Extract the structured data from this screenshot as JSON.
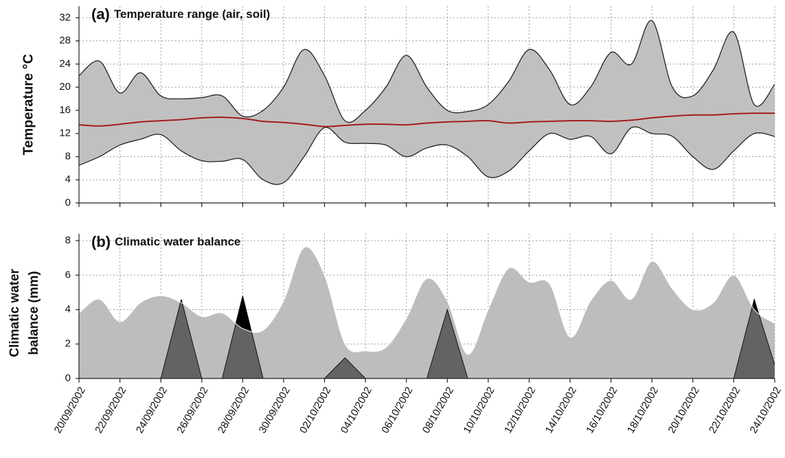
{
  "chart_data": [
    {
      "type": "range",
      "panel_label": "(a)",
      "title": "Temperature range (air, soil)",
      "ylabel": "Temperature °C",
      "x": [
        "20/09/2002",
        "21/09/2002",
        "22/09/2002",
        "23/09/2002",
        "24/09/2002",
        "25/09/2002",
        "26/09/2002",
        "27/09/2002",
        "28/09/2002",
        "29/09/2002",
        "30/09/2002",
        "01/10/2002",
        "02/10/2002",
        "03/10/2002",
        "04/10/2002",
        "05/10/2002",
        "06/10/2002",
        "07/10/2002",
        "08/10/2002",
        "09/10/2002",
        "10/10/2002",
        "11/10/2002",
        "12/10/2002",
        "13/10/2002",
        "14/10/2002",
        "15/10/2002",
        "16/10/2002",
        "17/10/2002",
        "18/10/2002",
        "19/10/2002",
        "20/10/2002",
        "21/10/2002",
        "22/10/2002",
        "23/10/2002",
        "24/10/2002"
      ],
      "series": [
        {
          "color": "#222222",
          "values": [
            22,
            24.5,
            19,
            22.5,
            18.5,
            18,
            18.2,
            18.5,
            15,
            16,
            20,
            26.5,
            22,
            14.2,
            16,
            20,
            25.5,
            20,
            16,
            15.8,
            17,
            21,
            26.5,
            23,
            17,
            20,
            26,
            24,
            31.5,
            20,
            18.5,
            23,
            29.5,
            17,
            20.5
          ]
        },
        {
          "color": "#222222",
          "values": [
            6.5,
            8,
            10,
            11,
            11.8,
            9,
            7.3,
            7.2,
            7.5,
            4,
            3.5,
            8,
            13,
            10.5,
            10.3,
            10,
            8,
            9.5,
            10,
            8,
            4.5,
            5.5,
            9,
            12,
            11,
            11.5,
            8.5,
            13,
            12,
            11.5,
            8,
            5.8,
            9,
            12,
            11.5
          ]
        },
        {
          "color": "#a51c1c",
          "values": [
            13.5,
            13.3,
            13.6,
            14,
            14.2,
            14.4,
            14.7,
            14.8,
            14.6,
            14.1,
            13.9,
            13.6,
            13.2,
            13.4,
            13.6,
            13.6,
            13.5,
            13.8,
            14,
            14.1,
            14.2,
            13.8,
            14,
            14.1,
            14.2,
            14.2,
            14.1,
            14.3,
            14.7,
            15,
            15.2,
            15.2,
            15.4,
            15.5,
            15.5
          ]
        }
      ],
      "fill": "#c0c0c0",
      "ylim": [
        0,
        34
      ],
      "yticks": [
        0,
        4,
        8,
        12,
        16,
        20,
        24,
        28,
        32
      ],
      "grid": true
    },
    {
      "type": "area",
      "panel_label": "(b)",
      "title": "Climatic water balance",
      "ylabel": [
        "Climatic water",
        "balance (mm)"
      ],
      "x": [
        "20/09/2002",
        "21/09/2002",
        "22/09/2002",
        "23/09/2002",
        "24/09/2002",
        "25/09/2002",
        "26/09/2002",
        "27/09/2002",
        "28/09/2002",
        "29/09/2002",
        "30/09/2002",
        "01/10/2002",
        "02/10/2002",
        "03/10/2002",
        "04/10/2002",
        "05/10/2002",
        "06/10/2002",
        "07/10/2002",
        "08/10/2002",
        "09/10/2002",
        "10/10/2002",
        "11/10/2002",
        "12/10/2002",
        "13/10/2002",
        "14/10/2002",
        "15/10/2002",
        "16/10/2002",
        "17/10/2002",
        "18/10/2002",
        "19/10/2002",
        "20/10/2002",
        "21/10/2002",
        "22/10/2002",
        "23/10/2002",
        "24/10/2002"
      ],
      "series": [
        {
          "color": "#bdbdbd",
          "values": [
            3.8,
            4.6,
            3.3,
            4.4,
            4.8,
            4.4,
            3.6,
            3.8,
            2.9,
            2.8,
            4.5,
            7.6,
            6,
            2,
            1.6,
            1.8,
            3.5,
            5.8,
            4.5,
            1.4,
            4,
            6.4,
            5.6,
            5.5,
            2.4,
            4.5,
            5.7,
            4.6,
            6.8,
            5.2,
            4,
            4.4,
            6,
            4,
            3.2
          ]
        },
        {
          "color": "#000000",
          "overlap_color": "#636363",
          "values": [
            0,
            0,
            0,
            0,
            0,
            4.6,
            0,
            0,
            4.8,
            0,
            0,
            0,
            0,
            1.2,
            0,
            0,
            0,
            0,
            4,
            0,
            0,
            0,
            0,
            0,
            0,
            0,
            0,
            0,
            0,
            0,
            0,
            0,
            0,
            4.6,
            0.8
          ]
        }
      ],
      "ylim": [
        0,
        8.4
      ],
      "yticks": [
        0,
        2,
        4,
        6,
        8
      ],
      "xticks": [
        "20/09/2002",
        "22/09/2002",
        "24/09/2002",
        "26/09/2002",
        "28/09/2002",
        "30/09/2002",
        "02/10/2002",
        "04/10/2002",
        "06/10/2002",
        "08/10/2002",
        "10/10/2002",
        "12/10/2002",
        "14/10/2002",
        "16/10/2002",
        "18/10/2002",
        "20/10/2002",
        "22/10/2002",
        "24/10/2002"
      ],
      "grid": true
    }
  ]
}
